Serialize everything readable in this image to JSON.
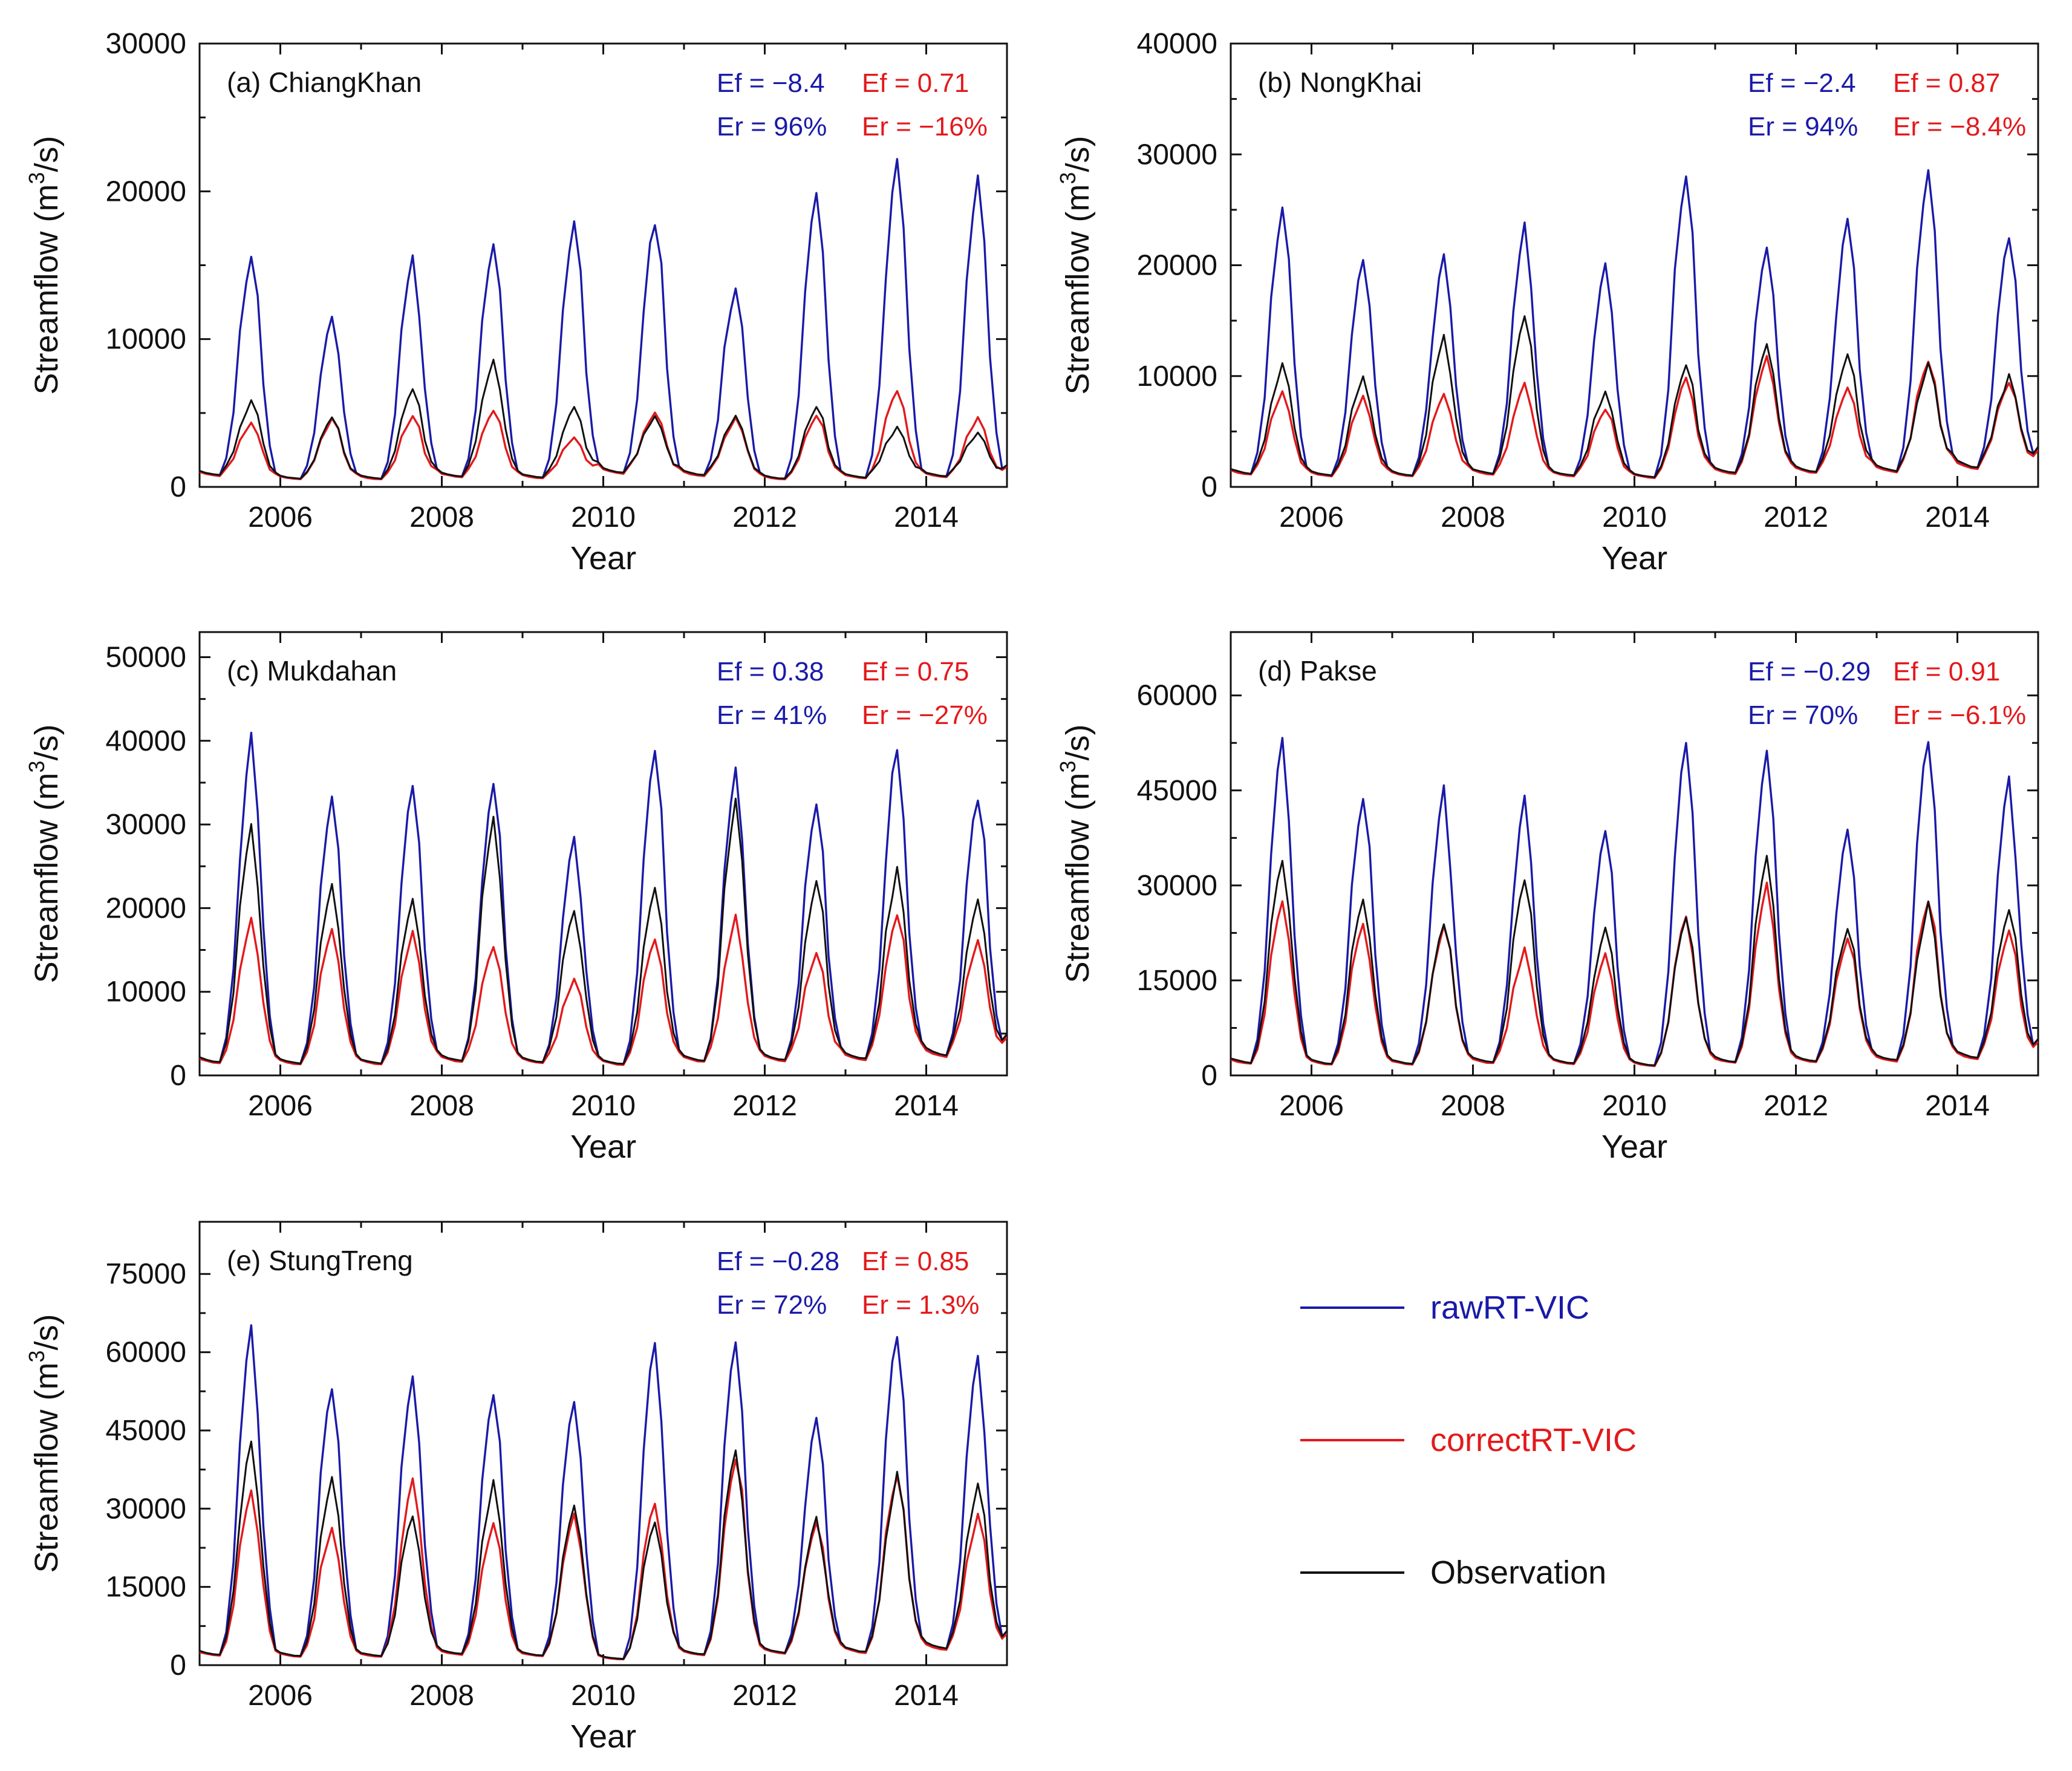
{
  "chart_data": {
    "type": "line",
    "series_meta": [
      {
        "key": "raw",
        "name": "rawRT-VIC",
        "color": "#1a1aa8"
      },
      {
        "key": "corr",
        "name": "correctRT-VIC",
        "color": "#e3191c"
      },
      {
        "key": "obs",
        "name": "Observation",
        "color": "#111111"
      }
    ],
    "xlabel": "Year",
    "ylabel_prefix": "Streamflow (m",
    "ylabel_sup": "3",
    "ylabel_suffix": "/s)",
    "xlim": [
      2005,
      2015
    ],
    "xticks": [
      "2006",
      "2008",
      "2010",
      "2012",
      "2014"
    ],
    "panels": [
      {
        "id": "a",
        "title": "(a) ChiangKhan",
        "ylim": [
          0,
          30000
        ],
        "yticks": [
          "0",
          "10000",
          "20000",
          "30000"
        ],
        "metrics": {
          "raw_ef": "Ef = −8.4",
          "raw_er": "Er = 96%",
          "corr_ef": "Ef = 0.71",
          "corr_er": "Er = −16%"
        },
        "low": [
          1000,
          700,
          700,
          900,
          800,
          1200,
          1000,
          700,
          800,
          900
        ],
        "raw": [
          15500,
          11500,
          15500,
          16500,
          18000,
          18000,
          13500,
          20000,
          22500,
          20800
        ],
        "corr": [
          4300,
          4600,
          4800,
          5200,
          3400,
          5100,
          4700,
          4900,
          6600,
          4700
        ],
        "obs": [
          5800,
          4700,
          6700,
          8500,
          5400,
          4800,
          4800,
          5500,
          4000,
          3700
        ]
      },
      {
        "id": "b",
        "title": "(b) NongKhai",
        "ylim": [
          0,
          40000
        ],
        "yticks": [
          "0",
          "10000",
          "20000",
          "30000",
          "40000"
        ],
        "metrics": {
          "raw_ef": "Ef = −2.4",
          "raw_er": "Er = 94%",
          "corr_ef": "Ef = 0.87",
          "corr_er": "Er = −8.4%"
        },
        "low": [
          1500,
          1300,
          1300,
          1500,
          1300,
          1100,
          1600,
          1700,
          1800,
          2200
        ],
        "raw": [
          25000,
          20500,
          21000,
          23500,
          20000,
          28500,
          22000,
          24000,
          29000,
          22500
        ],
        "corr": [
          8500,
          8200,
          8500,
          9300,
          7000,
          10000,
          12000,
          9000,
          11500,
          9500
        ],
        "obs": [
          11000,
          10000,
          13500,
          15500,
          8500,
          11000,
          13000,
          12000,
          11000,
          10000
        ]
      },
      {
        "id": "c",
        "title": "(c) Mukdahan",
        "ylim": [
          0,
          53000
        ],
        "yticks": [
          "0",
          "10000",
          "20000",
          "30000",
          "40000",
          "50000"
        ],
        "metrics": {
          "raw_ef": "Ef = 0.38",
          "raw_er": "Er = 41%",
          "corr_ef": "Ef = 0.75",
          "corr_er": "Er = −27%"
        },
        "low": [
          2000,
          1800,
          1800,
          2200,
          2000,
          1700,
          2200,
          2300,
          2500,
          3000
        ],
        "raw": [
          40500,
          33500,
          35000,
          35000,
          28000,
          39500,
          36500,
          33000,
          39500,
          33500
        ],
        "corr": [
          18500,
          17500,
          17000,
          15500,
          11500,
          16500,
          19000,
          14500,
          19500,
          16000
        ],
        "obs": [
          29500,
          23000,
          21000,
          30500,
          20000,
          22500,
          32500,
          23000,
          24500,
          21000
        ]
      },
      {
        "id": "d",
        "title": "(d) Pakse",
        "ylim": [
          0,
          70000
        ],
        "yticks": [
          "0",
          "15000",
          "30000",
          "45000",
          "60000"
        ],
        "metrics": {
          "raw_ef": "Ef = −0.29",
          "raw_er": "Er = 70%",
          "corr_ef": "Ef = 0.91",
          "corr_er": "Er = −6.1%"
        },
        "low": [
          2500,
          2300,
          2300,
          2600,
          2400,
          2000,
          2700,
          2800,
          3000,
          3500
        ],
        "raw": [
          52500,
          44000,
          45000,
          43500,
          39000,
          53500,
          51500,
          39000,
          53500,
          47000
        ],
        "corr": [
          28000,
          24000,
          23500,
          20000,
          19000,
          25500,
          30500,
          22000,
          28000,
          23000
        ],
        "obs": [
          34500,
          28000,
          24000,
          31000,
          23500,
          25000,
          34500,
          23500,
          27000,
          26500
        ]
      },
      {
        "id": "e",
        "title": "(e) StungTreng",
        "ylim": [
          0,
          85000
        ],
        "yticks": [
          "0",
          "15000",
          "30000",
          "45000",
          "60000",
          "75000"
        ],
        "metrics": {
          "raw_ef": "Ef = −0.28",
          "raw_er": "Er = 72%",
          "corr_ef": "Ef = 0.85",
          "corr_er": "Er = 1.3%"
        },
        "low": [
          2500,
          2200,
          2200,
          2700,
          2300,
          1500,
          2600,
          3000,
          3200,
          4000
        ],
        "raw": [
          64000,
          53500,
          55000,
          52000,
          50500,
          63000,
          63000,
          47000,
          64000,
          60000
        ],
        "corr": [
          34000,
          26500,
          36000,
          27500,
          29500,
          31500,
          40000,
          27500,
          37000,
          28500
        ],
        "obs": [
          43500,
          36500,
          29000,
          35000,
          30500,
          27500,
          41500,
          28500,
          36500,
          34500
        ]
      }
    ]
  }
}
